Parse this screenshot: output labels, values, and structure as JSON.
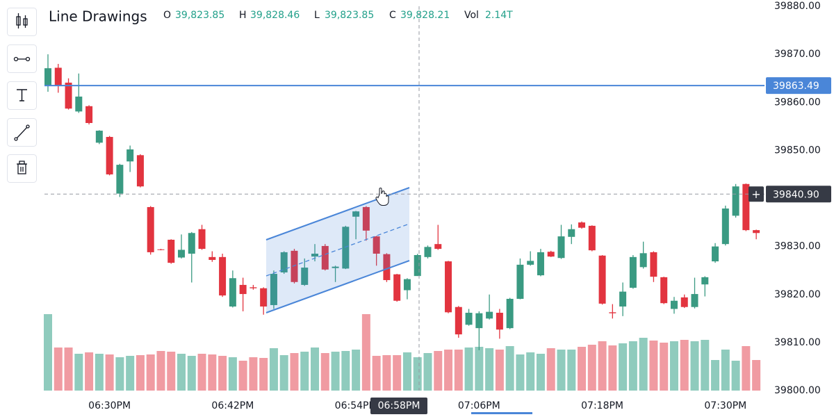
{
  "chart_data": {
    "type": "candlestick",
    "title": "Line Drawings",
    "legend": {
      "o_key": "O",
      "open": {
        "value": 39823.85,
        "label": "39,823.85"
      },
      "h_key": "H",
      "high": {
        "value": 39828.46,
        "label": "39,828.46"
      },
      "l_key": "L",
      "low": {
        "value": 39823.85,
        "label": "39,823.85"
      },
      "c_key": "C",
      "close": {
        "value": 39828.21,
        "label": "39,828.21"
      },
      "vol_key": "Vol",
      "volume": "2.14T"
    },
    "open": [
      39863.5,
      39867.2,
      39864.1,
      39858.1,
      39859.2,
      39851.6,
      39852.8,
      39841,
      39847.7,
      39849,
      39838.2,
      39829.4,
      39831.4,
      39827.7,
      39828.5,
      39833.6,
      39827.8,
      39827.8,
      39817.5,
      39822,
      39821.5,
      39821.3,
      39817.8,
      39824.6,
      39829.1,
      39822,
      39827.9,
      39830.1,
      39825.5,
      39825.4,
      39836.2,
      39838.2,
      39832.1,
      39828.4,
      39824.2,
      39820.9,
      39823.85,
      39827.8,
      39830.5,
      39826.9,
      39817.4,
      39813.7,
      39813,
      39815,
      39816.2,
      39813,
      39819.1,
      39826.2,
      39824,
      39828.9,
      39827.6,
      39832,
      39835,
      39834.3,
      39828.1,
      39816.3,
      39817.5,
      39821.4,
      39825.7,
      39828.8,
      39823.6,
      39817,
      39819.4,
      39817.4,
      39822.1,
      39826.9,
      39830.5,
      39836.4,
      39843,
      39833.4
    ],
    "high": [
      39870,
      39868,
      39865,
      39866,
      39859.4,
      39854.2,
      39853,
      39847.2,
      39851,
      39849.2,
      39838.4,
      39829.5,
      39831.5,
      39832.5,
      39833,
      39834.5,
      39829,
      39828.5,
      39825,
      39823.5,
      39822,
      39821.5,
      39825,
      39829,
      39829.5,
      39827.5,
      39830.5,
      39830.5,
      39826,
      39834.3,
      39837.4,
      39838.4,
      39832.2,
      39828.6,
      39824.3,
      39823.4,
      39828.46,
      39830.2,
      39834.5,
      39827,
      39817.6,
      39817,
      39816.5,
      39820,
      39817,
      39819.3,
      39827.5,
      39829,
      39829.5,
      39829.1,
      39834.5,
      39834.6,
      39835.2,
      39834.4,
      39828.2,
      39818,
      39822.5,
      39828.2,
      39831,
      39829,
      39823.7,
      39819.5,
      39820,
      39823.5,
      39823.8,
      39830.7,
      39838.5,
      39843,
      39843.1,
      39833.5
    ],
    "low": [
      39862.2,
      39862,
      39858.5,
      39857.8,
      39855.4,
      39851.3,
      39844.8,
      39840.3,
      39845.5,
      39842.3,
      39828.3,
      39829.2,
      39826.4,
      39827.5,
      39822.5,
      39829.3,
      39826.8,
      39819.5,
      39817.3,
      39816.5,
      39821,
      39815.8,
      39817,
      39824.3,
      39822.3,
      39821.8,
      39826.9,
      39825,
      39822.6,
      39825.3,
      39831.5,
      39831.2,
      39826,
      39822.6,
      39818.5,
      39819,
      39823.85,
      39827.5,
      39829.3,
      39816.1,
      39811,
      39813.5,
      39808.4,
      39814.8,
      39810.8,
      39812.8,
      39819,
      39826,
      39823.8,
      39827.8,
      39827.4,
      39830.5,
      39833.7,
      39829,
      39817.9,
      39815,
      39815.5,
      39821.2,
      39825.4,
      39822.6,
      39818,
      39816,
      39817.2,
      39817.1,
      39819.6,
      39826.6,
      39830.2,
      39836,
      39833.2,
      39831.5
    ],
    "close": [
      39867.1,
      39863.4,
      39858.7,
      39861.2,
      39855.7,
      39854.1,
      39845,
      39847,
      39850.2,
      39842.5,
      39828.8,
      39829.3,
      39826.6,
      39829.3,
      39832.8,
      39829.5,
      39827.2,
      39819.8,
      39823.4,
      39820.1,
      39821.3,
      39817.5,
      39824.3,
      39828.8,
      39822.6,
      39825.6,
      39828.5,
      39825.2,
      39825.8,
      39834.1,
      39837.3,
      39833.3,
      39828.5,
      39823,
      39818.7,
      39823.2,
      39828.21,
      39829.9,
      39829.5,
      39816.3,
      39811.7,
      39816.2,
      39816.1,
      39816.4,
      39812.7,
      39819.1,
      39826.2,
      39827,
      39828.8,
      39827.9,
      39832.1,
      39833.6,
      39833.9,
      39829.2,
      39818.1,
      39816.1,
      39820.6,
      39827.8,
      39828.6,
      39823.7,
      39818.2,
      39818.7,
      39817.4,
      39820.1,
      39823.6,
      39830,
      39837.9,
      39842.5,
      39833.4,
      39832.8
    ],
    "volume": [
      110,
      62,
      62,
      53,
      55,
      53,
      52,
      48,
      50,
      51,
      52,
      57,
      56,
      53,
      50,
      53,
      52,
      50,
      48,
      43,
      48,
      47,
      61,
      51,
      54,
      56,
      62,
      54,
      56,
      57,
      59,
      110,
      50,
      51,
      51,
      55,
      48,
      54,
      57,
      59,
      59,
      62,
      63,
      61,
      59,
      64,
      52,
      55,
      53,
      61,
      59,
      59,
      63,
      66,
      71,
      65,
      68,
      71,
      76,
      72,
      69,
      71,
      73,
      71,
      73,
      44,
      59,
      43,
      64,
      44
    ],
    "up_color": "#3a9a82",
    "down_color": "#e2343f",
    "up_volume_color": "#8fcbbd",
    "down_volume_color": "#f09ba2",
    "ylim": [
      39800,
      39880
    ],
    "yticks": [
      {
        "value": 39800,
        "label": "39800.00"
      },
      {
        "value": 39810,
        "label": "39810.00"
      },
      {
        "value": 39820,
        "label": "39820.00"
      },
      {
        "value": 39830,
        "label": "39830.00"
      },
      {
        "value": 39840,
        "label": "39840.00"
      },
      {
        "value": 39850,
        "label": "39850.00"
      },
      {
        "value": 39860,
        "label": "39860.00"
      },
      {
        "value": 39870,
        "label": "39870.00"
      },
      {
        "value": 39880,
        "label": "39880.00"
      }
    ],
    "xticks": [
      {
        "value": 6,
        "label": "06:30PM"
      },
      {
        "value": 18,
        "label": "06:42PM"
      },
      {
        "value": 30,
        "label": "06:54PM"
      },
      {
        "value": 42,
        "label": "07:06PM"
      },
      {
        "value": 54,
        "label": "07:18PM"
      },
      {
        "value": 66,
        "label": "07:30PM"
      }
    ],
    "volume_lim": [
      0,
      200
    ],
    "horizontal_line": {
      "value": 39863.49,
      "label": "39863.49",
      "color": "#4a86d8"
    },
    "crosshair": {
      "price": {
        "value": 39840.9,
        "label": "39840.90"
      },
      "time": "06:58PM",
      "plus": "+"
    },
    "grid": true
  }
}
